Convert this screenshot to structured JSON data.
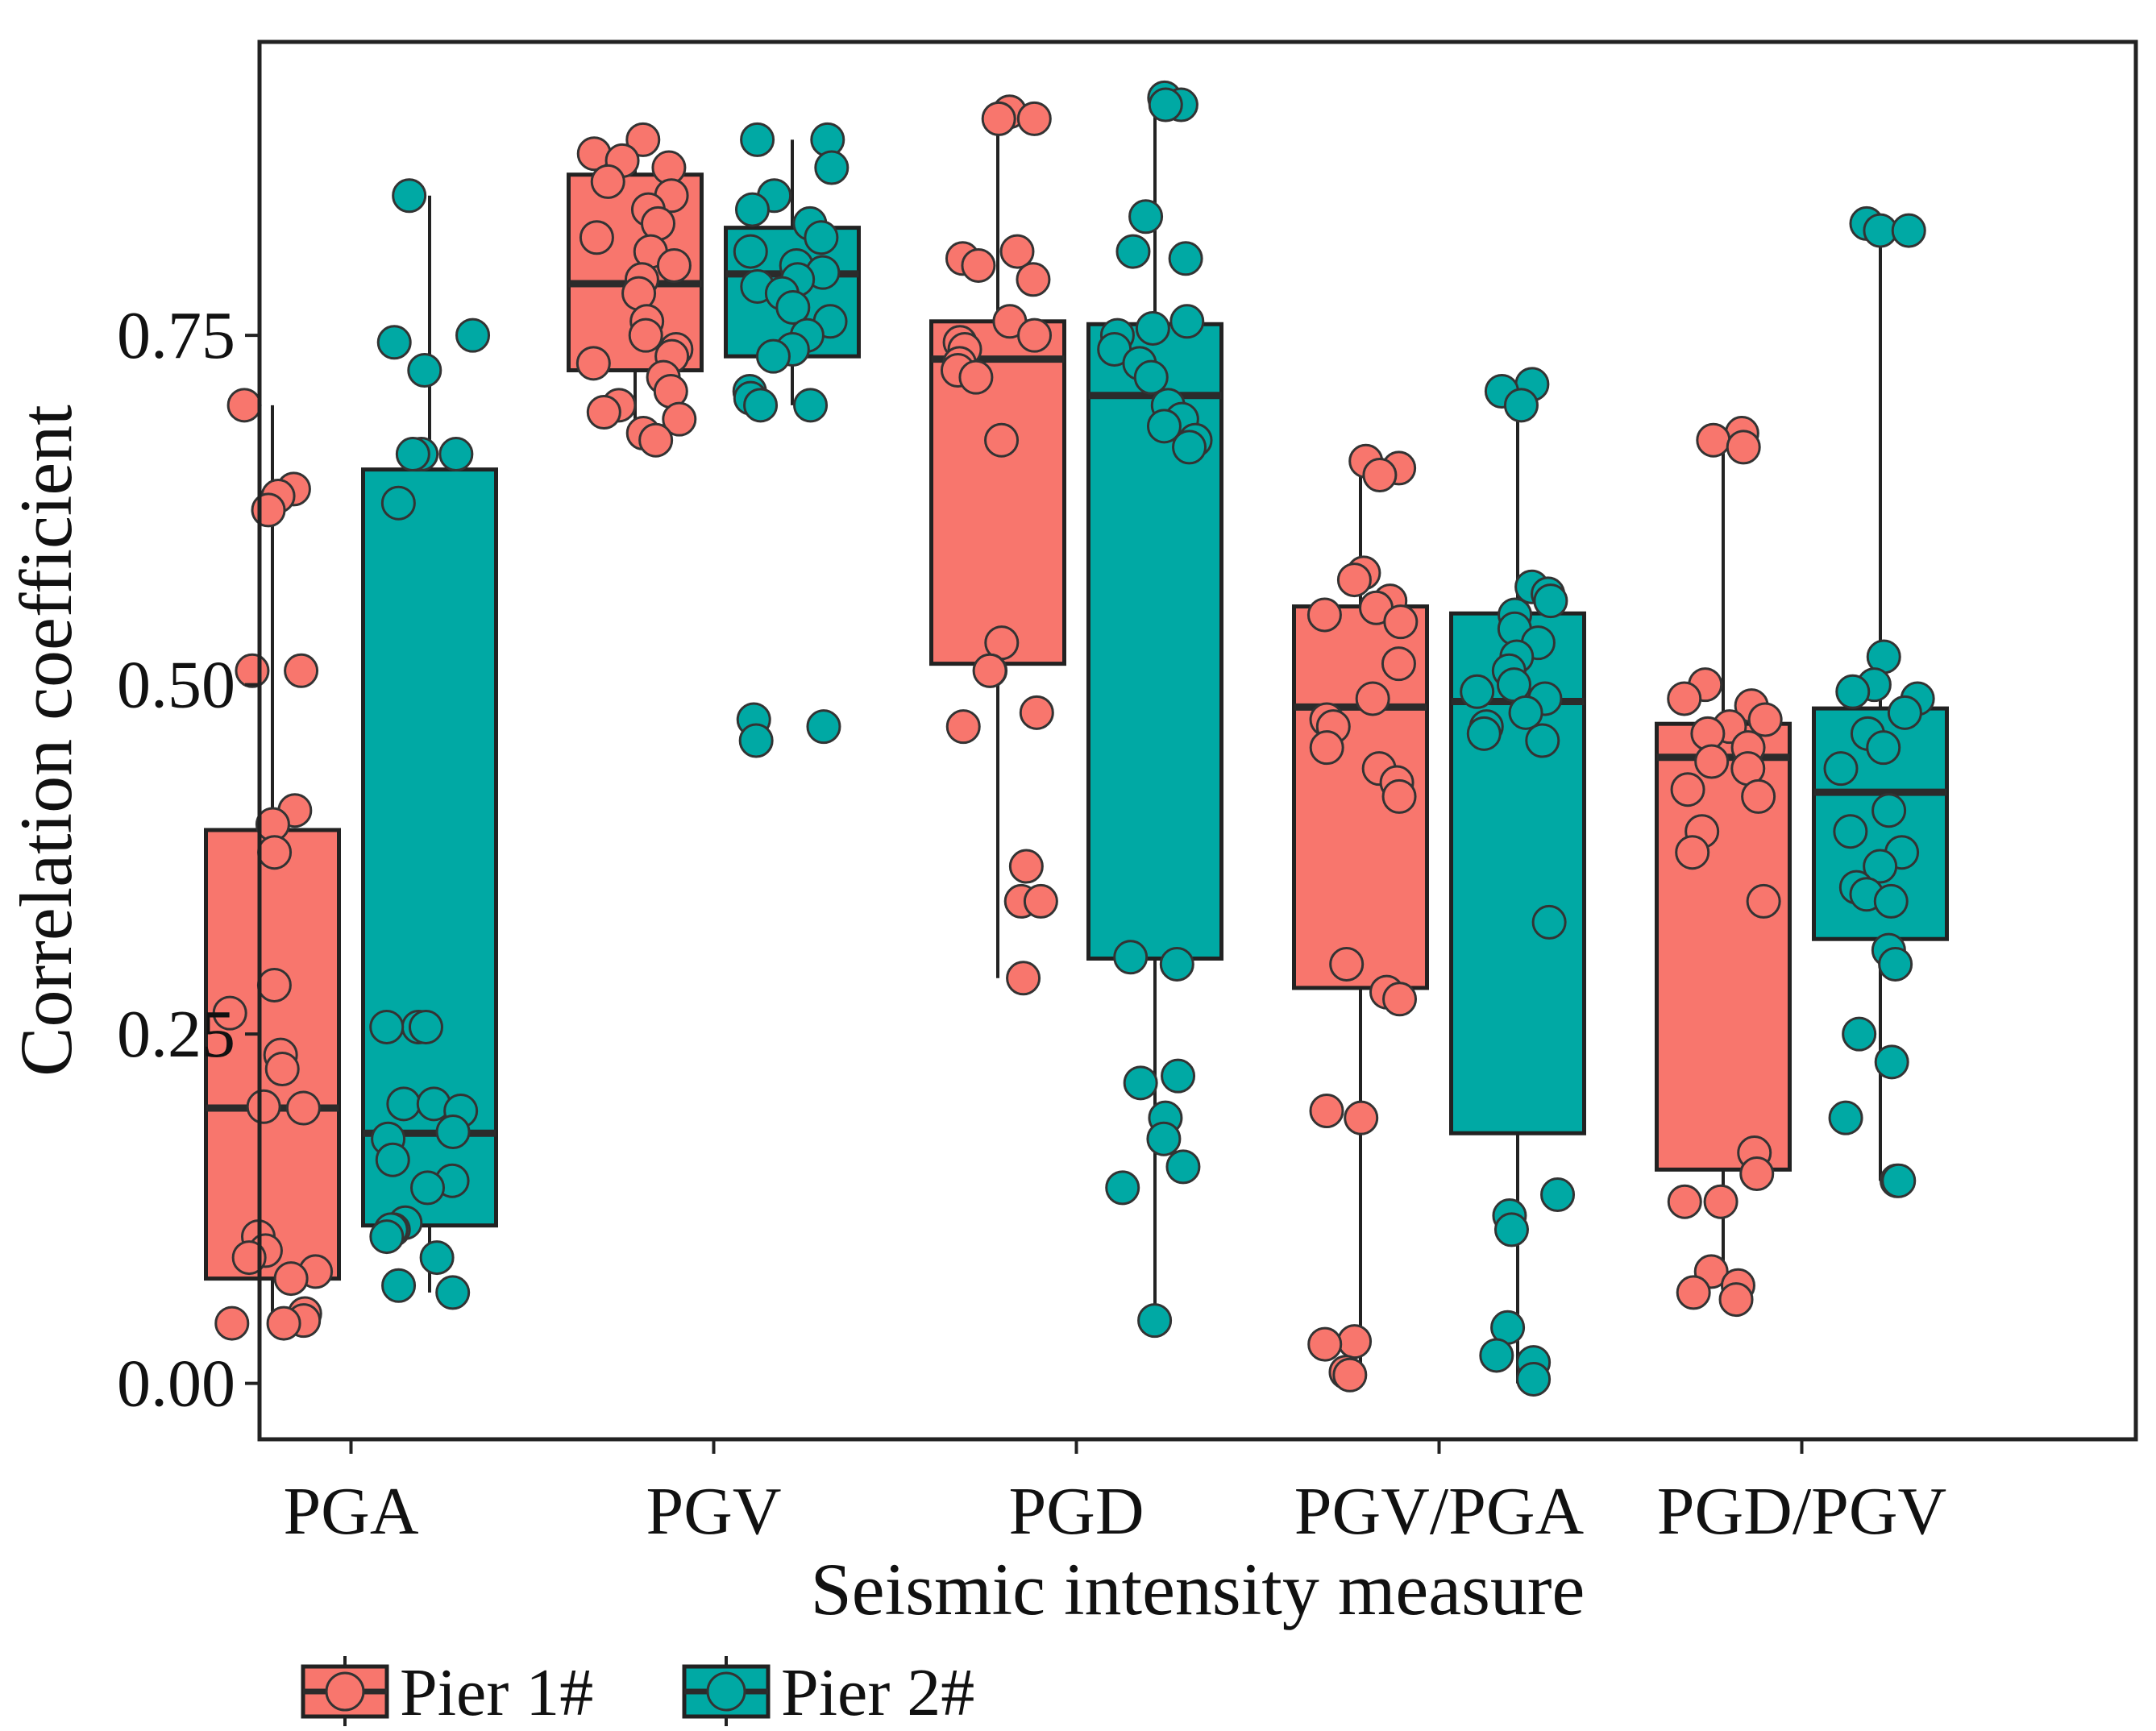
{
  "chart_data": {
    "type": "box",
    "title": "",
    "xlabel": "Seismic intensity measure",
    "ylabel": "Correlation coefficient",
    "ylim": [
      -0.04,
      0.96
    ],
    "yticks": [
      0.0,
      0.25,
      0.5,
      0.75
    ],
    "ytick_labels": [
      "0.00",
      "0.25",
      "0.50",
      "0.75"
    ],
    "categories": [
      "PGA",
      "PGV",
      "PGD",
      "PGV/PGA",
      "PGD/PGV"
    ],
    "legend": {
      "position": "bottom-left"
    },
    "series": [
      {
        "name": "Pier 1#",
        "color": "#F8766D",
        "boxes": [
          {
            "min": 0.04,
            "q1": 0.075,
            "median": 0.197,
            "q3": 0.396,
            "max": 0.7
          },
          {
            "min": 0.68,
            "q1": 0.725,
            "median": 0.787,
            "q3": 0.865,
            "max": 0.89
          },
          {
            "min": 0.29,
            "q1": 0.515,
            "median": 0.733,
            "q3": 0.76,
            "max": 0.91
          },
          {
            "min": 0.005,
            "q1": 0.283,
            "median": 0.484,
            "q3": 0.556,
            "max": 0.66
          },
          {
            "min": 0.06,
            "q1": 0.153,
            "median": 0.448,
            "q3": 0.472,
            "max": 0.67
          }
        ],
        "points": [
          [
            0.7,
            0.64,
            0.635,
            0.625,
            0.51,
            0.51,
            0.41,
            0.4,
            0.38,
            0.285,
            0.265,
            0.235,
            0.225,
            0.198,
            0.197,
            0.105,
            0.095,
            0.09,
            0.08,
            0.075,
            0.05,
            0.045,
            0.043,
            0.043
          ],
          [
            0.89,
            0.88,
            0.875,
            0.87,
            0.86,
            0.85,
            0.84,
            0.83,
            0.82,
            0.81,
            0.8,
            0.79,
            0.78,
            0.76,
            0.75,
            0.74,
            0.735,
            0.73,
            0.72,
            0.71,
            0.7,
            0.695,
            0.69,
            0.68,
            0.675
          ],
          [
            0.91,
            0.905,
            0.905,
            0.81,
            0.805,
            0.8,
            0.79,
            0.76,
            0.75,
            0.745,
            0.74,
            0.73,
            0.725,
            0.72,
            0.675,
            0.53,
            0.51,
            0.51,
            0.48,
            0.47,
            0.37,
            0.345,
            0.345,
            0.29
          ],
          [
            0.66,
            0.655,
            0.65,
            0.58,
            0.575,
            0.56,
            0.555,
            0.55,
            0.545,
            0.515,
            0.49,
            0.475,
            0.47,
            0.455,
            0.44,
            0.43,
            0.42,
            0.3,
            0.28,
            0.275,
            0.195,
            0.19,
            0.03,
            0.028,
            0.008,
            0.006
          ],
          [
            0.68,
            0.675,
            0.67,
            0.5,
            0.49,
            0.485,
            0.475,
            0.47,
            0.465,
            0.455,
            0.445,
            0.44,
            0.425,
            0.42,
            0.395,
            0.38,
            0.345,
            0.165,
            0.15,
            0.13,
            0.13,
            0.08,
            0.07,
            0.065,
            0.06
          ]
        ]
      },
      {
        "name": "Pier 2#",
        "color": "#00A9A4",
        "boxes": [
          {
            "min": 0.065,
            "q1": 0.113,
            "median": 0.179,
            "q3": 0.654,
            "max": 0.85
          },
          {
            "min": 0.7,
            "q1": 0.735,
            "median": 0.794,
            "q3": 0.827,
            "max": 0.89
          },
          {
            "min": 0.045,
            "q1": 0.304,
            "median": 0.707,
            "q3": 0.758,
            "max": 0.915
          },
          {
            "min": 0.0,
            "q1": 0.179,
            "median": 0.488,
            "q3": 0.551,
            "max": 0.71
          },
          {
            "min": 0.145,
            "q1": 0.318,
            "median": 0.423,
            "q3": 0.483,
            "max": 0.825
          }
        ],
        "points": [
          [
            0.85,
            0.75,
            0.745,
            0.725,
            0.665,
            0.665,
            0.665,
            0.63,
            0.255,
            0.255,
            0.255,
            0.2,
            0.2,
            0.195,
            0.18,
            0.175,
            0.16,
            0.145,
            0.14,
            0.115,
            0.11,
            0.11,
            0.105,
            0.09,
            0.07,
            0.065
          ],
          [
            0.89,
            0.89,
            0.87,
            0.85,
            0.84,
            0.83,
            0.82,
            0.81,
            0.8,
            0.795,
            0.79,
            0.785,
            0.78,
            0.77,
            0.76,
            0.75,
            0.74,
            0.735,
            0.71,
            0.705,
            0.7,
            0.7,
            0.475,
            0.47,
            0.46
          ],
          [
            0.92,
            0.915,
            0.915,
            0.835,
            0.81,
            0.805,
            0.76,
            0.755,
            0.75,
            0.74,
            0.73,
            0.72,
            0.7,
            0.69,
            0.685,
            0.675,
            0.67,
            0.305,
            0.3,
            0.22,
            0.215,
            0.19,
            0.175,
            0.155,
            0.14,
            0.045
          ],
          [
            0.715,
            0.71,
            0.7,
            0.57,
            0.565,
            0.56,
            0.55,
            0.54,
            0.53,
            0.52,
            0.51,
            0.5,
            0.495,
            0.49,
            0.48,
            0.47,
            0.465,
            0.46,
            0.33,
            0.135,
            0.12,
            0.11,
            0.04,
            0.02,
            0.015,
            0.003
          ],
          [
            0.83,
            0.825,
            0.825,
            0.52,
            0.5,
            0.495,
            0.49,
            0.48,
            0.465,
            0.455,
            0.44,
            0.41,
            0.395,
            0.38,
            0.37,
            0.355,
            0.35,
            0.345,
            0.31,
            0.3,
            0.25,
            0.23,
            0.19,
            0.145,
            0.145
          ]
        ]
      }
    ]
  }
}
